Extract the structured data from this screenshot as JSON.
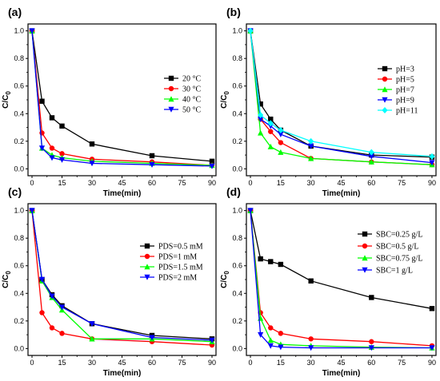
{
  "chart_data": [
    {
      "type": "line",
      "panel_label": "(a)",
      "xlabel": "Time(min)",
      "ylabel": "C/C0",
      "ylabel_main": "C/C",
      "ylabel_sub": "0",
      "xlim": [
        -2,
        92
      ],
      "ylim": [
        -0.05,
        1.05
      ],
      "xticks": [
        "0",
        "15",
        "30",
        "45",
        "60",
        "75",
        "90"
      ],
      "yticks": [
        "0.0",
        "0.2",
        "0.4",
        "0.6",
        "0.8",
        "1.0"
      ],
      "legend_position": "right-middle",
      "x": [
        0,
        5,
        10,
        15,
        30,
        60,
        90
      ],
      "series": [
        {
          "name": "20 °C",
          "color": "#000000",
          "marker": "square",
          "values": [
            1.0,
            0.49,
            0.37,
            0.31,
            0.18,
            0.095,
            0.055
          ]
        },
        {
          "name": "30 °C",
          "color": "#ff0000",
          "marker": "circle",
          "values": [
            1.0,
            0.26,
            0.15,
            0.11,
            0.07,
            0.05,
            0.025
          ]
        },
        {
          "name": "40 °C",
          "color": "#00ff00",
          "marker": "triangle-up",
          "values": [
            1.0,
            0.15,
            0.1,
            0.08,
            0.055,
            0.04,
            0.025
          ]
        },
        {
          "name": "50 °C",
          "color": "#0000ff",
          "marker": "triangle-down",
          "values": [
            1.0,
            0.15,
            0.08,
            0.065,
            0.04,
            0.03,
            0.02
          ]
        }
      ]
    },
    {
      "type": "line",
      "panel_label": "(b)",
      "xlabel": "Time(min)",
      "ylabel": "C/C0",
      "ylabel_main": "C/C",
      "ylabel_sub": "0",
      "xlim": [
        -2,
        92
      ],
      "ylim": [
        -0.05,
        1.05
      ],
      "xticks": [
        "0",
        "15",
        "30",
        "45",
        "60",
        "75",
        "90"
      ],
      "yticks": [
        "0.0",
        "0.2",
        "0.4",
        "0.6",
        "0.8",
        "1.0"
      ],
      "legend_position": "right-middle",
      "x": [
        0,
        5,
        10,
        15,
        30,
        60,
        90
      ],
      "series": [
        {
          "name": "pH=3",
          "color": "#000000",
          "marker": "square",
          "values": [
            1.0,
            0.47,
            0.36,
            0.28,
            0.165,
            0.1,
            0.085
          ]
        },
        {
          "name": "pH=5",
          "color": "#ff0000",
          "marker": "circle",
          "values": [
            1.0,
            0.36,
            0.27,
            0.19,
            0.075,
            0.05,
            0.03
          ]
        },
        {
          "name": "pH=7",
          "color": "#00ff00",
          "marker": "triangle-up",
          "values": [
            1.0,
            0.26,
            0.16,
            0.12,
            0.075,
            0.05,
            0.03
          ]
        },
        {
          "name": "pH=9",
          "color": "#0000ff",
          "marker": "triangle-down",
          "values": [
            1.0,
            0.36,
            0.31,
            0.25,
            0.165,
            0.09,
            0.045
          ]
        },
        {
          "name": "pH=11",
          "color": "#00ffff",
          "marker": "diamond",
          "values": [
            1.0,
            0.39,
            0.33,
            0.28,
            0.2,
            0.12,
            0.09
          ]
        }
      ]
    },
    {
      "type": "line",
      "panel_label": "(c)",
      "xlabel": "Time(min)",
      "ylabel": "C/C0",
      "ylabel_main": "C/C",
      "ylabel_sub": "0",
      "xlim": [
        -2,
        92
      ],
      "ylim": [
        -0.05,
        1.05
      ],
      "xticks": [
        "0",
        "15",
        "30",
        "45",
        "60",
        "75",
        "90"
      ],
      "yticks": [
        "0.0",
        "0.2",
        "0.4",
        "0.6",
        "0.8",
        "1.0"
      ],
      "legend_position": "right-middle",
      "x": [
        0,
        5,
        10,
        15,
        30,
        60,
        90
      ],
      "series": [
        {
          "name": "PDS=0.5 mM",
          "color": "#000000",
          "marker": "square",
          "values": [
            1.0,
            0.5,
            0.39,
            0.31,
            0.18,
            0.095,
            0.07
          ]
        },
        {
          "name": "PDS=1 mM",
          "color": "#ff0000",
          "marker": "circle",
          "values": [
            1.0,
            0.26,
            0.15,
            0.11,
            0.07,
            0.05,
            0.025
          ]
        },
        {
          "name": "PDS=1.5 mM",
          "color": "#00ff00",
          "marker": "triangle-up",
          "values": [
            1.0,
            0.49,
            0.37,
            0.28,
            0.07,
            0.07,
            0.05
          ]
        },
        {
          "name": "PDS=2 mM",
          "color": "#0000ff",
          "marker": "triangle-down",
          "values": [
            1.0,
            0.5,
            0.38,
            0.3,
            0.18,
            0.08,
            0.06
          ]
        }
      ]
    },
    {
      "type": "line",
      "panel_label": "(d)",
      "xlabel": "Time(min)",
      "ylabel": "C/C0",
      "ylabel_main": "C/C",
      "ylabel_sub": "0",
      "xlim": [
        -2,
        92
      ],
      "ylim": [
        -0.05,
        1.05
      ],
      "xticks": [
        "0",
        "15",
        "30",
        "45",
        "60",
        "75",
        "90"
      ],
      "yticks": [
        "0.0",
        "0.2",
        "0.4",
        "0.6",
        "0.8",
        "1.0"
      ],
      "legend_position": "right-upper",
      "x": [
        0,
        5,
        10,
        15,
        30,
        60,
        90
      ],
      "series": [
        {
          "name": "SBC=0.25 g/L",
          "color": "#000000",
          "marker": "square",
          "values": [
            1.0,
            0.65,
            0.63,
            0.61,
            0.49,
            0.37,
            0.29
          ]
        },
        {
          "name": "SBC=0.5 g/L",
          "color": "#ff0000",
          "marker": "circle",
          "values": [
            1.0,
            0.26,
            0.15,
            0.11,
            0.07,
            0.05,
            0.02
          ]
        },
        {
          "name": "SBC=0.75 g/L",
          "color": "#00ff00",
          "marker": "triangle-up",
          "values": [
            1.0,
            0.22,
            0.06,
            0.03,
            0.02,
            0.01,
            0.005
          ]
        },
        {
          "name": "SBC=1 g/L",
          "color": "#0000ff",
          "marker": "triangle-down",
          "values": [
            1.0,
            0.1,
            0.02,
            0.01,
            0.005,
            0.005,
            0.005
          ]
        }
      ]
    }
  ]
}
